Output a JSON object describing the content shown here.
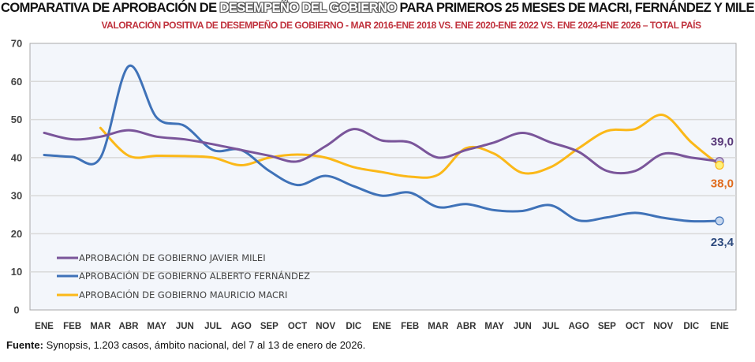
{
  "chart_data": {
    "type": "line",
    "title_prefix": "COMPARATIVA DE APROBACIÓN DE ",
    "title_highlight": "DESEMPEÑO DEL GOBIERNO",
    "title_suffix": " PARA PRIMEROS 25 MESES DE MACRI, FERNÁNDEZ Y MILE",
    "subtitle": "VALORACIÓN POSITIVA DE DESEMPEÑO DE GOBIERNO - MAR 2016-ENE 2018 VS. ENE 2020-ENE 2022 VS. ENE 2024-ENE 2026 – TOTAL PAÍS",
    "xlabel": "",
    "ylabel": "",
    "ylim": [
      0,
      70
    ],
    "yticks": [
      0,
      10,
      20,
      30,
      40,
      50,
      60,
      70
    ],
    "grid": true,
    "legend_position": "bottom-left",
    "categories": [
      "ENE",
      "FEB",
      "MAR",
      "ABR",
      "MAY",
      "JUN",
      "JUL",
      "AGO",
      "SEP",
      "OCT",
      "NOV",
      "DIC",
      "ENE",
      "FEB",
      "MAR",
      "ABR",
      "MAY",
      "JUN",
      "JUL",
      "AGO",
      "SEP",
      "OCT",
      "NOV",
      "DIC",
      "ENE"
    ],
    "series": [
      {
        "name": "APROBACIÓN DE GOBIERNO JAVIER MILEI",
        "color": "#7a559a",
        "values": [
          46.5,
          44.8,
          45.5,
          47.2,
          45.5,
          44.8,
          43.5,
          42.0,
          40.5,
          39.0,
          43.0,
          47.5,
          44.5,
          44.0,
          40.0,
          42.0,
          44.0,
          46.5,
          44.0,
          41.5,
          36.5,
          36.5,
          41.0,
          40.0,
          39.0
        ],
        "end_label": "39,0",
        "end_label_color": "#5a3a7a"
      },
      {
        "name": "APROBACIÓN DE GOBIERNO ALBERTO FERNÁNDEZ",
        "color": "#3f72b8",
        "values": [
          40.7,
          40.2,
          40.0,
          64.0,
          50.5,
          48.3,
          42.0,
          42.0,
          36.5,
          32.8,
          35.2,
          32.5,
          30.0,
          30.8,
          27.0,
          27.8,
          26.2,
          26.0,
          27.5,
          23.5,
          24.3,
          25.5,
          24.2,
          23.3,
          23.4
        ],
        "end_label": "23,4",
        "end_label_color": "#2d4a7e"
      },
      {
        "name": "APROBACIÓN DE GOBIERNO MAURICIO MACRI",
        "color": "#fbb818",
        "start_index": 2,
        "values": [
          null,
          null,
          47.8,
          40.5,
          40.5,
          40.4,
          40.0,
          38.0,
          40.0,
          40.8,
          40.0,
          37.5,
          36.2,
          35.0,
          35.5,
          42.5,
          41.0,
          36.0,
          37.5,
          42.5,
          47.0,
          47.5,
          51.2,
          44.0,
          38.0
        ],
        "end_label": "38,0",
        "end_label_color": "#e06c1e"
      }
    ]
  },
  "footer": {
    "label": "Fuente:",
    "text": " Synopsis, 1.203 casos, ámbito nacional, del 7 al 13 de enero de 2026."
  }
}
